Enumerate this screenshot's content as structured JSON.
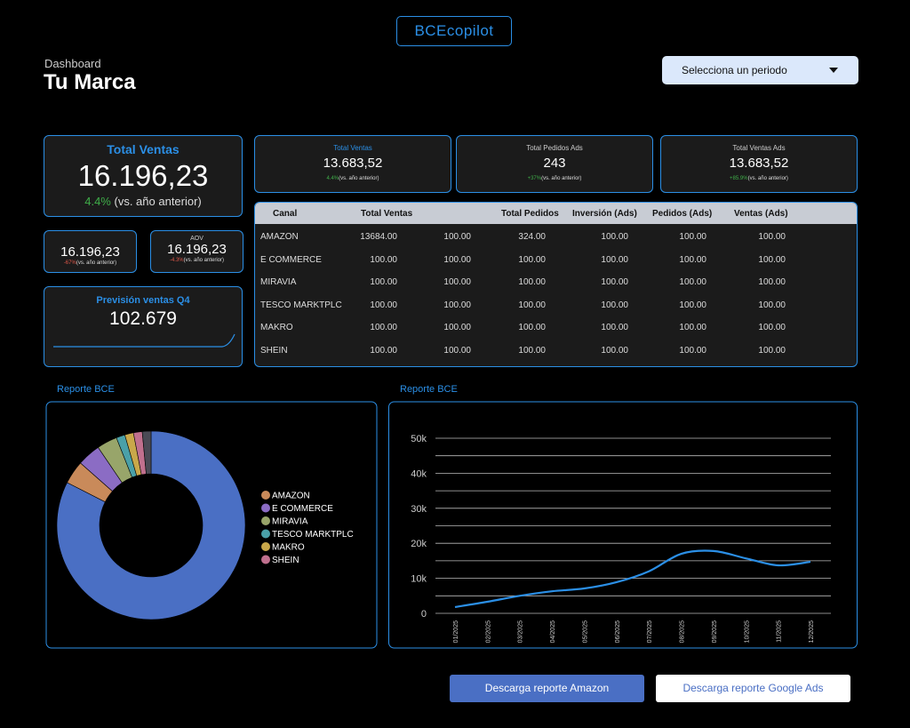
{
  "header": {
    "logo": "BCEcopilot",
    "breadcrumb": "Dashboard",
    "title": "Tu Marca",
    "period_select": "Selecciona un periodo"
  },
  "kpis": {
    "main": {
      "label": "Total Ventas",
      "value": "16.196,23",
      "change": "4.4%",
      "note": "(vs. año anterior)"
    },
    "small_1": {
      "value": "16.196,23",
      "change": "-67%",
      "note": "(vs. año anterior)"
    },
    "small_2": {
      "label": "AOV",
      "value": "16.196,23",
      "change": "-4.3%",
      "note": "(vs. año anterior)"
    },
    "forecast": {
      "label": "Previsión ventas Q4",
      "value": "102.679"
    },
    "top": [
      {
        "label": "Total Ventas",
        "value": "13.683,52",
        "change": "4.4%",
        "note": "(vs. año anterior)"
      },
      {
        "label": "Total Pedidos Ads",
        "value": "243",
        "change": "+37%",
        "note": "(vs. año anterior)"
      },
      {
        "label": "Total Ventas Ads",
        "value": "13.683,52",
        "change": "+85.9%",
        "note": "(vs. año anterior)"
      }
    ]
  },
  "table": {
    "headers": [
      "Canal",
      "Total Ventas",
      null,
      "Total Pedidos",
      "Inversión (Ads)",
      "Pedidos (Ads)",
      "Ventas (Ads)"
    ],
    "rows": [
      [
        "AMAZON",
        "13684.00",
        "100.00",
        "324.00",
        "100.00",
        "100.00",
        "100.00"
      ],
      [
        "E COMMERCE",
        "100.00",
        "100.00",
        "100.00",
        "100.00",
        "100.00",
        "100.00"
      ],
      [
        "MIRAVIA",
        "100.00",
        "100.00",
        "100.00",
        "100.00",
        "100.00",
        "100.00"
      ],
      [
        "TESCO MARKTPLC",
        "100.00",
        "100.00",
        "100.00",
        "100.00",
        "100.00",
        "100.00"
      ],
      [
        "MAKRO",
        "100.00",
        "100.00",
        "100.00",
        "100.00",
        "100.00",
        "100.00"
      ],
      [
        "SHEIN",
        "100.00",
        "100.00",
        "100.00",
        "100.00",
        "100.00",
        "100.00"
      ]
    ]
  },
  "chart_data": [
    {
      "type": "pie",
      "title": "Reporte BCE",
      "donut": true,
      "categories": [
        null,
        "AMAZON",
        "E COMMERCE",
        "MIRAVIA",
        "TESCO MARKTPLC",
        "MAKRO",
        "SHEIN",
        null
      ],
      "values": [
        82.5,
        4,
        4,
        3.5,
        1.5,
        1.5,
        1.5,
        1.5
      ],
      "colors": [
        "#4a6fc4",
        "#c98a5a",
        "#8b6cc4",
        "#98a56a",
        "#4aa0a8",
        "#c9a84a",
        "#c0708e",
        "#4a4a55"
      ]
    },
    {
      "type": "line",
      "title": "Reporte BCE",
      "categories": [
        "01/2025",
        "02/2025",
        "03/2025",
        "04/2025",
        "05/2025",
        "06/2025",
        "07/2025",
        "08/2025",
        "09/2025",
        "10/2025",
        "11/2025",
        "12/2025"
      ],
      "series": [
        {
          "color": "#2b8fe6",
          "values": [
            1800,
            3300,
            5000,
            6300,
            7100,
            8900,
            12000,
            17000,
            17800,
            15700,
            13700,
            14700
          ]
        }
      ],
      "ylim": [
        0,
        50000
      ],
      "yticks": [
        0,
        {
          "value": 10000,
          "label": "10k"
        },
        {
          "value": 20000,
          "label": "20k"
        },
        {
          "value": 30000,
          "label": "30k"
        },
        {
          "value": 40000,
          "label": "40k"
        },
        {
          "value": 50000,
          "label": "50k"
        }
      ],
      "minor_yticks": [
        5000,
        15000,
        25000,
        35000,
        45000
      ],
      "grid": true
    }
  ],
  "buttons": [
    "Descarga reporte Amazon",
    "Descarga reporte Google Ads"
  ]
}
